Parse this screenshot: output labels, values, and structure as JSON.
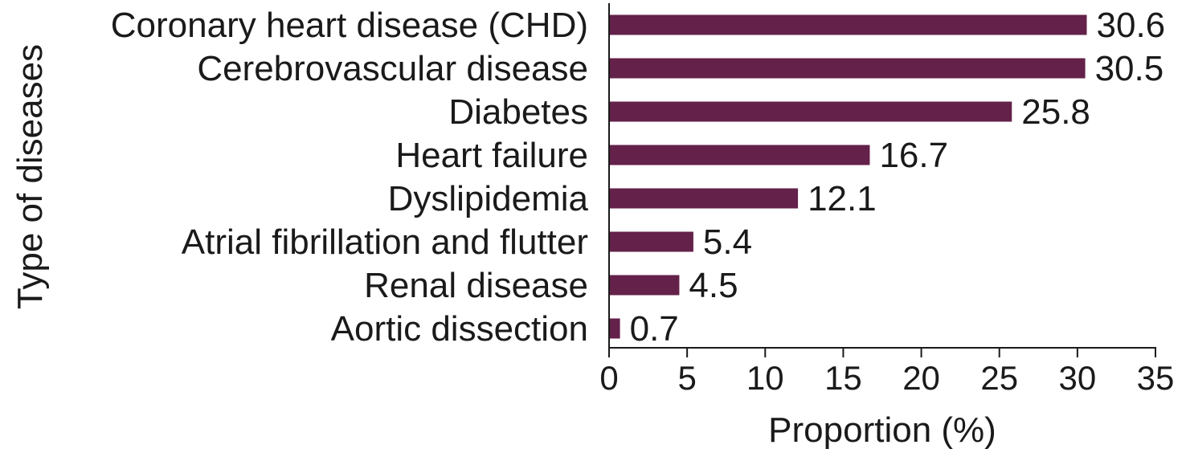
{
  "chart_data": {
    "type": "bar",
    "orientation": "horizontal",
    "categories": [
      "Coronary heart disease (CHD)",
      "Cerebrovascular disease",
      "Diabetes",
      "Heart failure",
      "Dyslipidemia",
      "Atrial fibrillation and flutter",
      "Renal disease",
      "Aortic dissection"
    ],
    "values": [
      30.6,
      30.5,
      25.8,
      16.7,
      12.1,
      5.4,
      4.5,
      0.7
    ],
    "value_labels": [
      "30.6",
      "30.5",
      "25.8",
      "16.7",
      "12.1",
      "5.4",
      "4.5",
      "0.7"
    ],
    "title": "",
    "xlabel": "Proportion (%)",
    "ylabel": "Type of diseases",
    "xlim": [
      0,
      35
    ],
    "xticks": [
      "0",
      "5",
      "10",
      "15",
      "20",
      "25",
      "30",
      "35"
    ],
    "grid": false,
    "legend": "none",
    "bar_color": "#64214a"
  }
}
